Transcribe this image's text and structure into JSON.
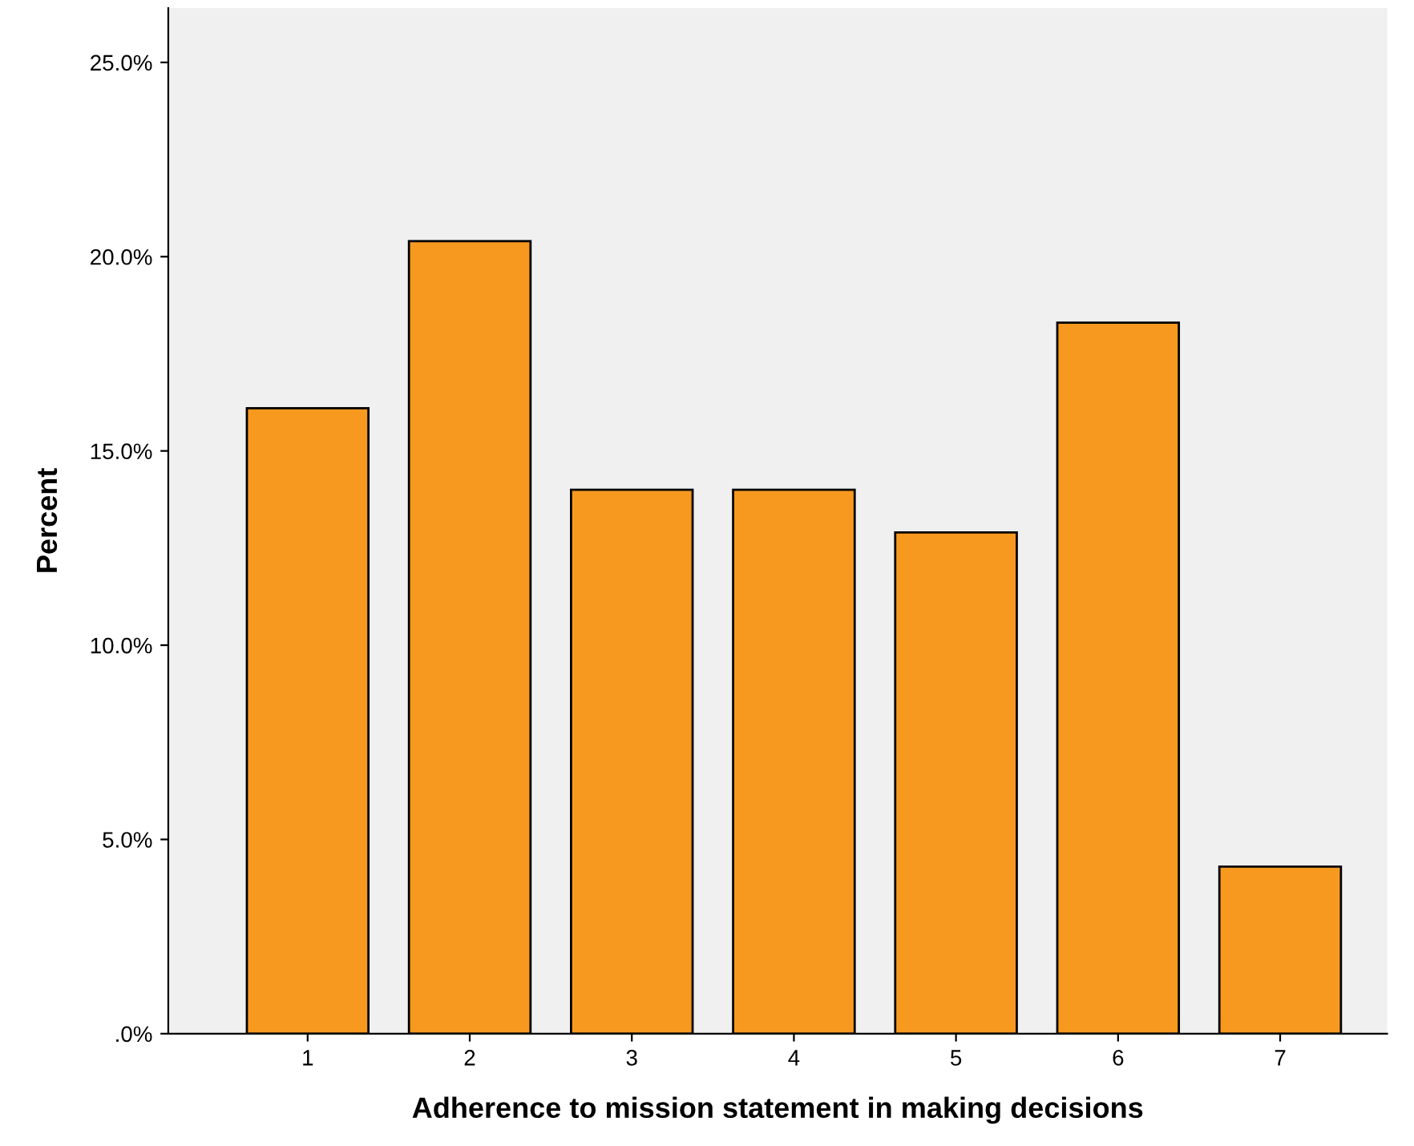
{
  "chart_data": {
    "type": "bar",
    "xlabel": "Adherence to mission statement in making decisions",
    "ylabel": "Percent",
    "categories": [
      "1",
      "2",
      "3",
      "4",
      "5",
      "6",
      "7"
    ],
    "values": [
      16.1,
      20.4,
      14.0,
      14.0,
      12.9,
      18.3,
      4.3
    ],
    "color": "#f7991f",
    "ylim": [
      0,
      26.4
    ],
    "yticks": [
      {
        "value": 0,
        "label": ".0%"
      },
      {
        "value": 5,
        "label": "5.0%"
      },
      {
        "value": 10,
        "label": "10.0%"
      },
      {
        "value": 15,
        "label": "15.0%"
      },
      {
        "value": 20,
        "label": "20.0%"
      },
      {
        "value": 25,
        "label": "25.0%"
      }
    ],
    "grid": false,
    "legend": false
  }
}
